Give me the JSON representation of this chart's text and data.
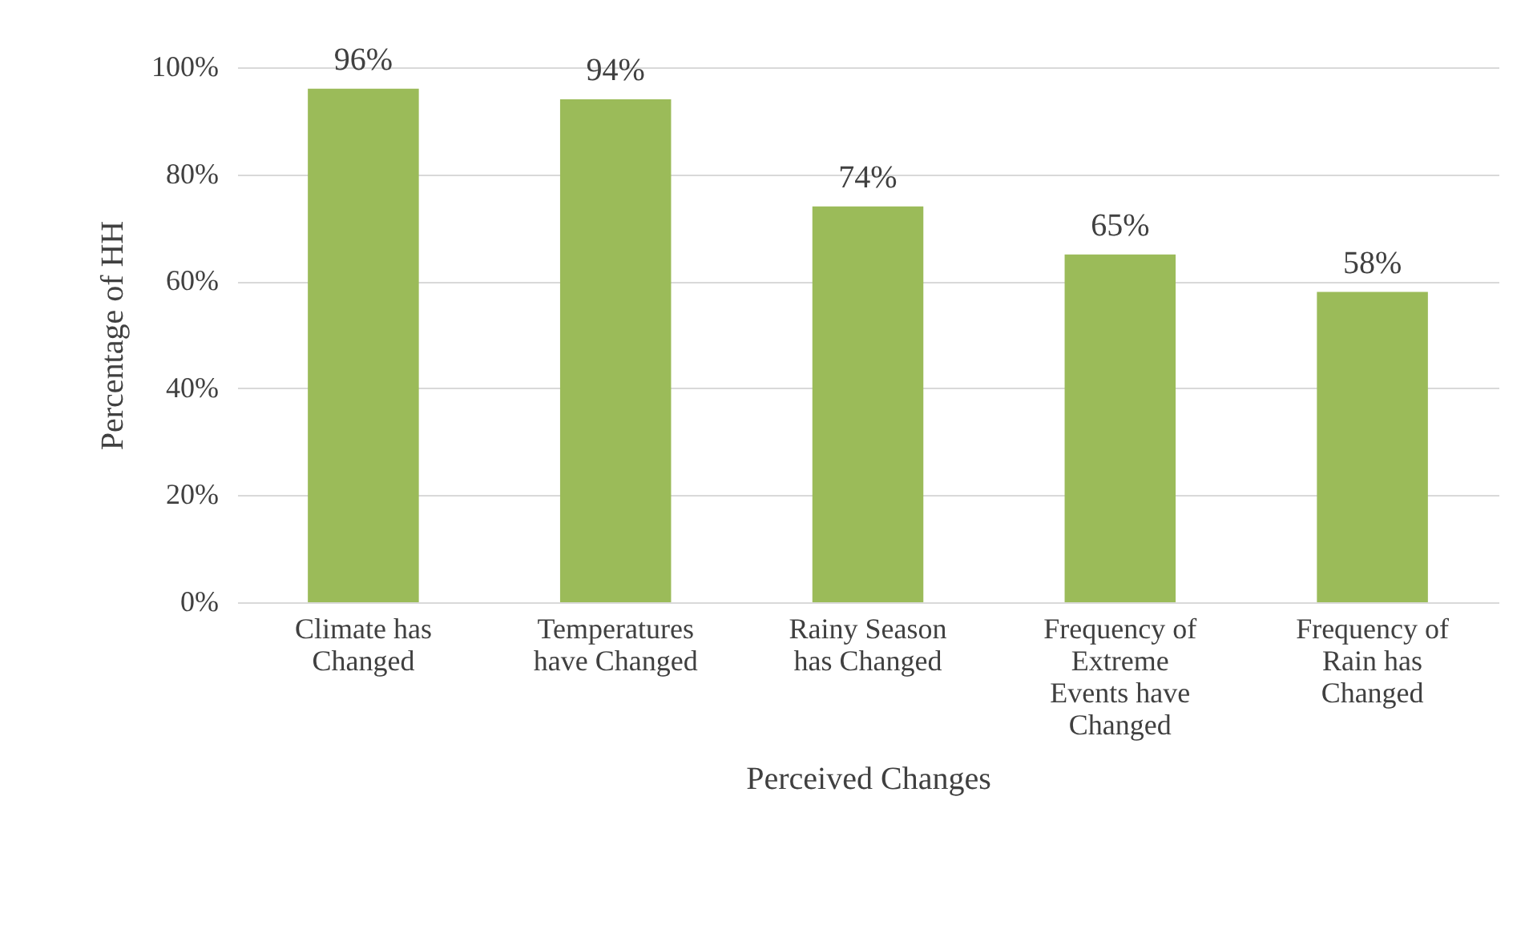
{
  "chart_data": {
    "type": "bar",
    "xlabel": "Perceived Changes",
    "ylabel": "Percentage of HH",
    "categories": [
      "Climate has Changed",
      "Temperatures have Changed",
      "Rainy Season has Changed",
      "Frequency of Extreme Events have Changed",
      "Frequency of Rain has Changed"
    ],
    "values": [
      96,
      94,
      74,
      65,
      58
    ],
    "value_labels": [
      "96%",
      "94%",
      "74%",
      "65%",
      "58%"
    ],
    "color": "#9bbb59",
    "ylim": [
      0,
      100
    ],
    "yticks": [
      {
        "value": 0,
        "label": "0%"
      },
      {
        "value": 20,
        "label": "20%"
      },
      {
        "value": 40,
        "label": "40%"
      },
      {
        "value": 60,
        "label": "60%"
      },
      {
        "value": 80,
        "label": "80%"
      },
      {
        "value": 100,
        "label": "100%"
      }
    ],
    "grid": "y"
  }
}
